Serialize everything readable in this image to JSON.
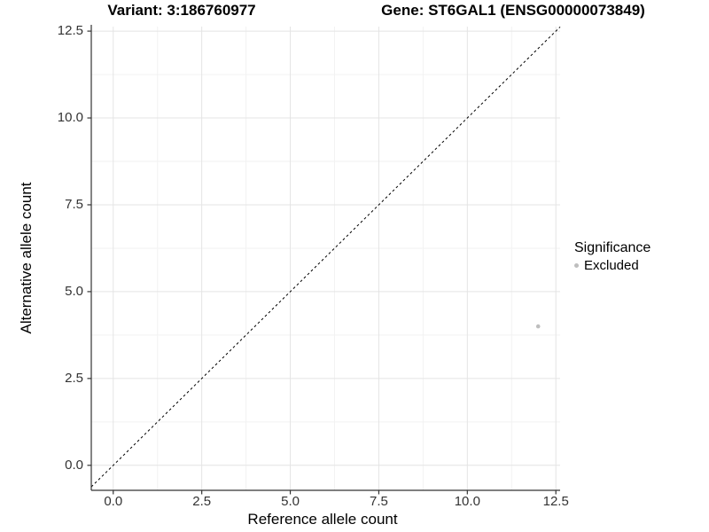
{
  "colors": {
    "background": "#ffffff",
    "grid_major": "#e4e4e4",
    "grid_minor": "#f2f2f2",
    "axis_line": "#333333",
    "tick_mark": "#333333",
    "tick_label": "#333333",
    "text": "#000000",
    "point": "#bebebe",
    "identity_line": "#000000"
  },
  "chart_data": {
    "type": "scatter",
    "titles": {
      "left": "Variant: 3:186760977",
      "right": "Gene: ST6GAL1 (ENSG00000073849)"
    },
    "xlabel": "Reference allele count",
    "ylabel": "Alternative allele count",
    "xlim": [
      -0.62,
      12.62
    ],
    "ylim": [
      -0.72,
      12.63
    ],
    "xticks": [
      0,
      2.5,
      5,
      7.5,
      10,
      12.5
    ],
    "yticks": [
      0,
      2.5,
      5,
      7.5,
      10,
      12.5
    ],
    "x_tick_labels": [
      "0.0",
      "2.5",
      "5.0",
      "7.5",
      "10.0",
      "12.5"
    ],
    "y_tick_labels": [
      "0.0",
      "2.5",
      "5.0",
      "7.5",
      "10.0",
      "12.5"
    ],
    "minor_xticks": [
      1.25,
      3.75,
      6.25,
      8.75,
      11.25
    ],
    "minor_yticks": [
      1.25,
      3.75,
      6.25,
      8.75,
      11.25
    ],
    "grid": "major+minor",
    "identity_line": {
      "slope": 1,
      "intercept": 0,
      "style": "dashed",
      "color": "#000000"
    },
    "series": [
      {
        "name": "Excluded",
        "color": "#bebebe",
        "marker": "circle",
        "points": [
          {
            "x": 12,
            "y": 4
          }
        ]
      }
    ],
    "legend": {
      "position": "right",
      "title": "Significance",
      "items": [
        {
          "label": "Excluded",
          "color": "#bebebe"
        }
      ]
    }
  }
}
